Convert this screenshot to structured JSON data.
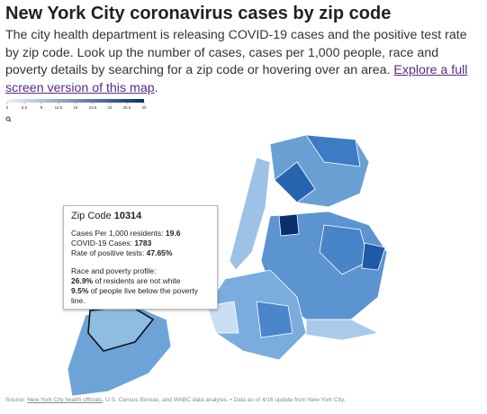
{
  "header": {
    "title": "New York City coronavirus cases by zip code",
    "description": "The city health department is releasing COVID-19 cases and the positive test rate by zip code. Look up the number of cases, cases per 1,000 people, race and poverty details by searching for a zip code or hovering over an area. ",
    "link": "Explore a full screen version of this map",
    "description_end": "."
  },
  "legend": {
    "ticks": [
      2,
      5.5,
      9,
      12.5,
      16,
      19.5,
      23,
      26.5,
      30
    ],
    "colors": [
      "#eaf2fb",
      "#08306b"
    ]
  },
  "tooltip": {
    "title_prefix": "Zip Code",
    "zip": "10314",
    "rows": [
      {
        "label": "Cases Per 1,000 residents:",
        "value": "19.6"
      },
      {
        "label": "COVID-19 Cases:",
        "value": "1783"
      },
      {
        "label": "Rate of positive tests:",
        "value": "47.65%"
      }
    ],
    "section": "Race and poverty profile:",
    "notes": [
      {
        "value": "26.9%",
        "text": "of residents are not white"
      },
      {
        "value": "9.5%",
        "text": "of people live below the poverty line."
      }
    ]
  },
  "source": {
    "prefix": "Source: ",
    "link": "New York City health officials",
    "rest": ", U.S. Census Bureau, and WABC data analysis. • Data as of 4/16 update from New York City."
  }
}
